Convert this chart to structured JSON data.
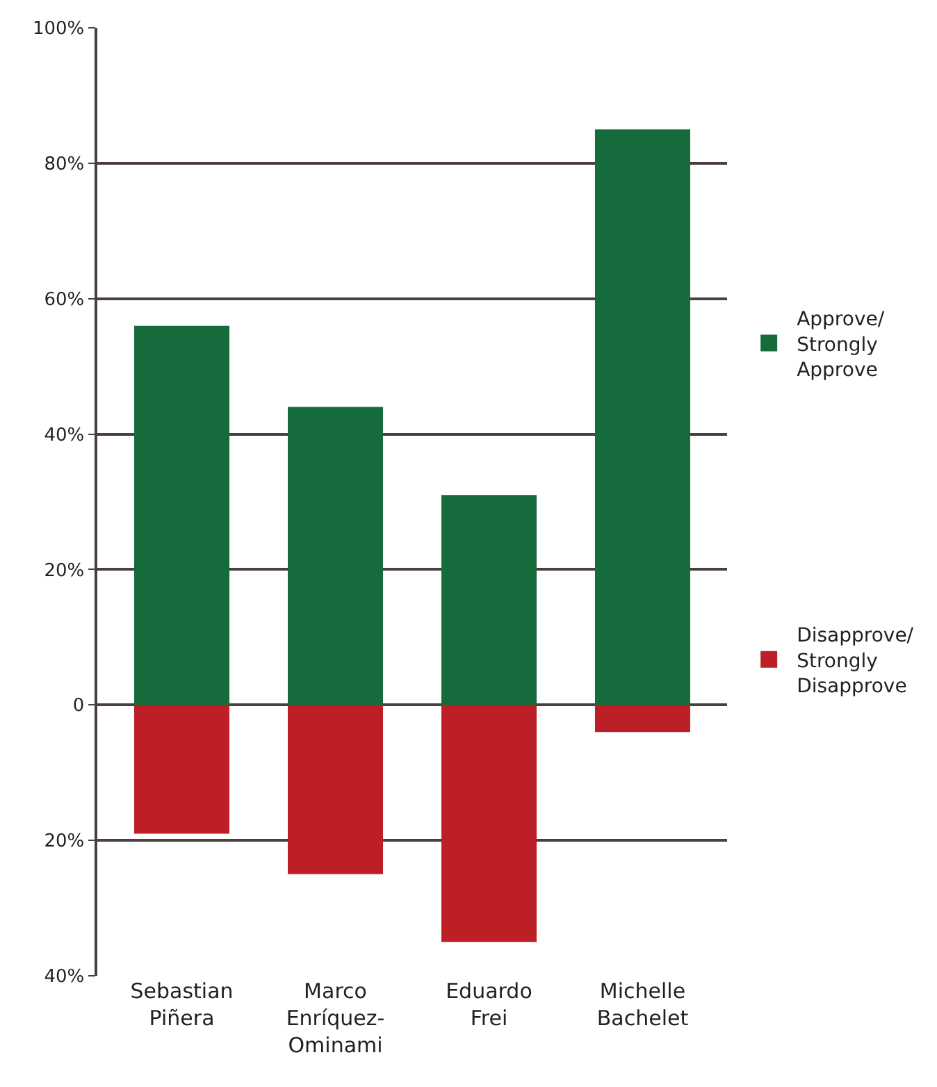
{
  "chart_data": {
    "type": "bar",
    "stacked": true,
    "categories": [
      "Sebastian\nPiñera",
      "Marco\nEnríquez-\nOminami",
      "Eduardo\nFrei",
      "Michelle\nBachelet"
    ],
    "series": [
      {
        "name": "Approve/\nStrongly\nApprove",
        "color": "#156b3c",
        "values": [
          56,
          44,
          31,
          85
        ]
      },
      {
        "name": "Disapprove/\nStrongly\nDisapprove",
        "color": "#bd1f26",
        "values": [
          -19,
          -25,
          -35,
          -4
        ]
      }
    ],
    "ylim": [
      -40,
      100
    ],
    "yticks": [
      {
        "value": -40,
        "label": "40%"
      },
      {
        "value": -20,
        "label": "20%"
      },
      0,
      {
        "value": 20,
        "label": "20%"
      },
      {
        "value": 40,
        "label": "40%"
      },
      {
        "value": 60,
        "label": "60%"
      },
      {
        "value": 80,
        "label": "80%"
      },
      {
        "value": 100,
        "label": "100%"
      }
    ],
    "grid": "y",
    "legend": "right"
  }
}
